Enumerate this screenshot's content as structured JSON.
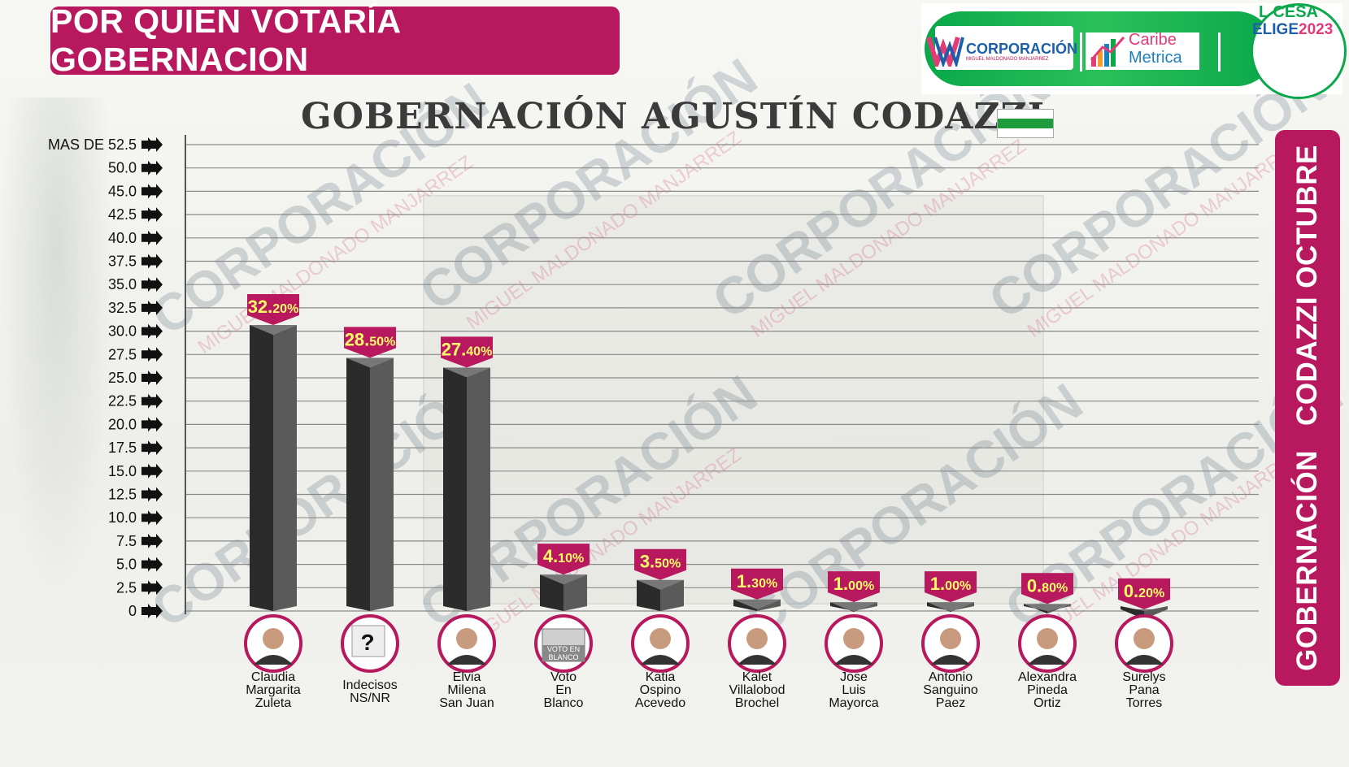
{
  "header": {
    "title": "POR QUIEN VOTARÍA GOBERNACION",
    "side_label_left": "GOBERNACIÓN",
    "side_label_right": "CODAZZI OCTUBRE"
  },
  "logos": {
    "corporacion": "CORPORACIÓN",
    "corporacion_sub": "MIGUEL MALDONADO MANJARREZ",
    "caribe": "Caribe",
    "metrica": "Metrica",
    "cesar": "L CESA",
    "elige": "ELIGE",
    "year": "2023"
  },
  "watermark": {
    "main": "CORPORACIÓN",
    "sub": "MIGUEL MALDONADO MANJARREZ"
  },
  "flag_colors": [
    "#ffffff",
    "#1e9b3a",
    "#ffffff"
  ],
  "colors": {
    "accent": "#b8185d",
    "bar_front": "#2b2b2b",
    "bar_side": "#5a5a5a",
    "label_text": "#fffa6a"
  },
  "chart_data": {
    "type": "bar",
    "title": "GOBERNACIÓN AGUSTÍN CODAZZI",
    "ytick_labels": [
      "0",
      "2.5",
      "5.0",
      "7.5",
      "10.0",
      "12.5",
      "15.0",
      "17.5",
      "20.0",
      "22.5",
      "25.0",
      "27.5",
      "30.0",
      "32.5",
      "35.0",
      "37.5",
      "40.0",
      "42.5",
      "45.0",
      "50.0",
      "MAS DE 52.5"
    ],
    "ylim": [
      0,
      52.5
    ],
    "grid": true,
    "categories": [
      [
        "Claudia",
        "Margarita",
        "Zuleta"
      ],
      [
        "Indecisos",
        "NS/NR"
      ],
      [
        "Elvia",
        "Milena",
        "San Juan"
      ],
      [
        "Voto",
        "En",
        "Blanco"
      ],
      [
        "Katia",
        "Ospino",
        "Acevedo"
      ],
      [
        "Kalet",
        "Villalobod",
        "Brochel"
      ],
      [
        "Jose",
        "Luis",
        "Mayorca"
      ],
      [
        "Antonio",
        "Sanguino",
        "Paez"
      ],
      [
        "Alexandra",
        "Pineda",
        "Ortiz"
      ],
      [
        "Surelys",
        "Pana",
        "Torres"
      ]
    ],
    "values": [
      32.2,
      28.5,
      27.4,
      4.1,
      3.5,
      1.3,
      1.0,
      1.0,
      0.8,
      0.2
    ],
    "value_labels": [
      [
        "32.",
        "20%"
      ],
      [
        "28.",
        "50%"
      ],
      [
        "27.",
        "40%"
      ],
      [
        "4.",
        "10%"
      ],
      [
        "3.",
        "50%"
      ],
      [
        "1.",
        "30%"
      ],
      [
        "1.",
        "00%"
      ],
      [
        "1.",
        "00%"
      ],
      [
        "0.",
        "80%"
      ],
      [
        "0.",
        "20%"
      ]
    ],
    "avatar_icons": [
      "person-photo",
      "question-ballot-icon",
      "person-photo",
      "blank-vote-icon",
      "person-photo",
      "person-photo",
      "person-photo",
      "person-photo",
      "person-photo",
      "person-photo"
    ],
    "blank_vote_text": [
      "VOTO EN",
      "BLANCO"
    ],
    "question_mark": "?"
  }
}
